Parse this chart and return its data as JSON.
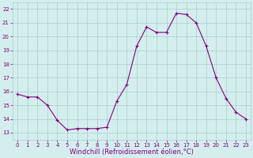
{
  "x": [
    0,
    1,
    2,
    3,
    4,
    5,
    6,
    7,
    8,
    9,
    10,
    11,
    12,
    13,
    14,
    15,
    16,
    17,
    18,
    19,
    20,
    21,
    22,
    23
  ],
  "y": [
    15.8,
    15.6,
    15.6,
    15.0,
    13.9,
    13.2,
    13.3,
    13.3,
    13.3,
    13.4,
    15.3,
    16.5,
    19.3,
    20.7,
    20.3,
    20.3,
    21.7,
    21.6,
    21.0,
    19.3,
    17.0,
    15.5,
    14.5,
    14.0
  ],
  "line_color": "#800080",
  "marker": "+",
  "marker_size": 3,
  "bg_color": "#d4eeee",
  "grid_color": "#aacccc",
  "xlabel": "Windchill (Refroidissement éolien,°C)",
  "xlim": [
    -0.5,
    23.5
  ],
  "ylim": [
    12.5,
    22.5
  ],
  "yticks": [
    13,
    14,
    15,
    16,
    17,
    18,
    19,
    20,
    21,
    22
  ],
  "xticks": [
    0,
    1,
    2,
    3,
    4,
    5,
    6,
    7,
    8,
    9,
    10,
    11,
    12,
    13,
    14,
    15,
    16,
    17,
    18,
    19,
    20,
    21,
    22,
    23
  ],
  "tick_color": "#800080",
  "tick_fontsize": 5.0,
  "xlabel_fontsize": 6.0
}
